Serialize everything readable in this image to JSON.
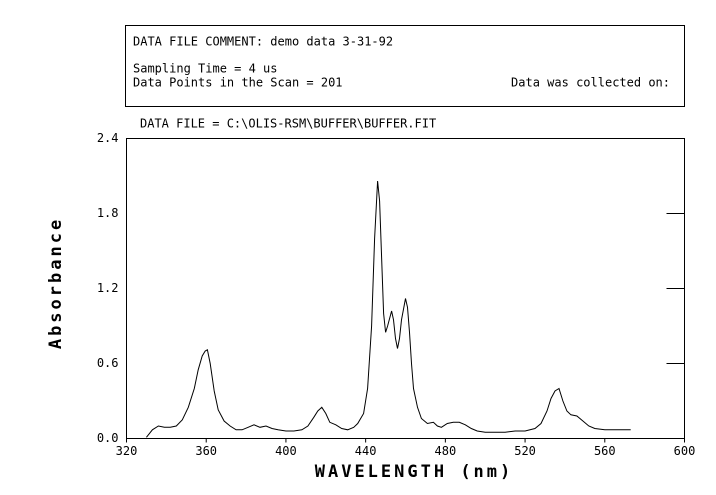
{
  "chart_data": {
    "type": "line",
    "header": {
      "comment": "DATA FILE COMMENT:  demo data 3-31-92",
      "sampling": "Sampling Time =  4 us",
      "points": "Data Points in the Scan =  201",
      "collected": "Data was collected on:"
    },
    "title": "DATA FILE = C:\\OLIS-RSM\\BUFFER\\BUFFER.FIT",
    "x_label": "WAVELENGTH (nm)",
    "y_label": "Absorbance",
    "color": "#000000",
    "x": [
      330,
      333,
      336,
      339,
      342,
      345,
      348,
      351,
      354,
      356,
      358,
      359.5,
      360.6,
      362,
      364,
      366,
      369,
      372,
      375,
      378,
      381,
      384,
      387,
      390,
      393,
      396,
      400,
      404,
      408,
      411,
      414,
      416,
      418,
      420,
      422,
      425,
      428,
      431,
      434,
      436,
      439,
      441,
      443,
      444.5,
      446,
      447,
      448,
      449,
      450,
      451,
      453,
      454,
      455,
      456,
      457,
      458,
      460,
      461,
      462,
      463,
      464,
      466,
      468,
      471,
      474,
      476,
      478,
      481,
      484,
      487,
      490,
      493,
      496,
      500,
      505,
      510,
      515,
      520,
      525,
      528,
      531,
      533,
      535,
      537,
      539,
      541,
      543,
      546,
      549,
      552,
      555,
      560,
      565,
      570,
      573
    ],
    "values": [
      0.01,
      0.07,
      0.1,
      0.09,
      0.09,
      0.1,
      0.15,
      0.25,
      0.4,
      0.55,
      0.66,
      0.7,
      0.71,
      0.6,
      0.38,
      0.23,
      0.14,
      0.1,
      0.07,
      0.07,
      0.09,
      0.11,
      0.09,
      0.1,
      0.08,
      0.07,
      0.06,
      0.06,
      0.07,
      0.1,
      0.17,
      0.22,
      0.25,
      0.2,
      0.13,
      0.11,
      0.08,
      0.07,
      0.09,
      0.12,
      0.2,
      0.4,
      0.9,
      1.6,
      2.06,
      1.9,
      1.45,
      1.0,
      0.85,
      0.9,
      1.02,
      0.95,
      0.8,
      0.72,
      0.8,
      0.95,
      1.12,
      1.05,
      0.85,
      0.6,
      0.4,
      0.25,
      0.16,
      0.12,
      0.13,
      0.1,
      0.09,
      0.12,
      0.13,
      0.13,
      0.11,
      0.08,
      0.06,
      0.05,
      0.05,
      0.05,
      0.06,
      0.06,
      0.08,
      0.12,
      0.22,
      0.32,
      0.38,
      0.4,
      0.3,
      0.22,
      0.19,
      0.18,
      0.14,
      0.1,
      0.08,
      0.07,
      0.07,
      0.07,
      0.07
    ],
    "xlim": [
      320,
      600
    ],
    "xticks": [
      320,
      360,
      400,
      440,
      480,
      520,
      560,
      600
    ],
    "ylim": [
      0,
      2.4
    ],
    "yticks": [
      {
        "value": 0,
        "label": "0.0"
      },
      0.6,
      1.2,
      1.8,
      2.4
    ]
  }
}
